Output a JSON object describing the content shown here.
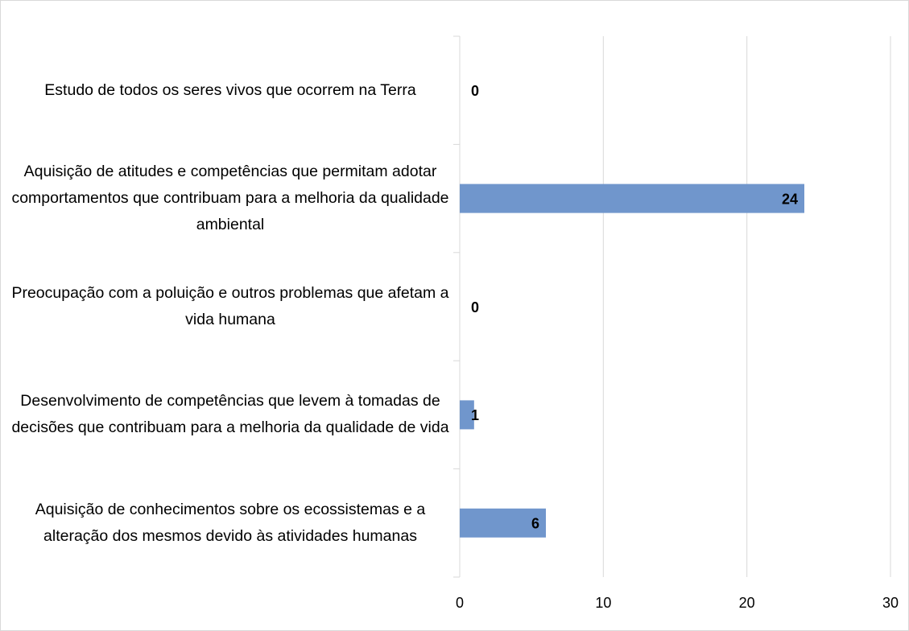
{
  "chart_data": {
    "type": "bar",
    "orientation": "horizontal",
    "categories": [
      "Estudo de todos os seres vivos que ocorrem na Terra",
      "Aquisição de atitudes e competências que permitam adotar comportamentos que contribuam para a melhoria da qualidade ambiental",
      "Preocupação com a poluição e outros problemas que afetam a vida humana",
      "Desenvolvimento de competências que levem à tomadas de decisões que contribuam para a melhoria da qualidade de vida",
      "Aquisição de conhecimentos sobre os ecossistemas e a alteração dos mesmos devido às atividades humanas"
    ],
    "values": [
      0,
      24,
      0,
      1,
      6
    ],
    "color": "#7096cc",
    "xlim": [
      0,
      30
    ],
    "xticks": [
      0,
      10,
      20,
      30
    ],
    "grid": true
  }
}
